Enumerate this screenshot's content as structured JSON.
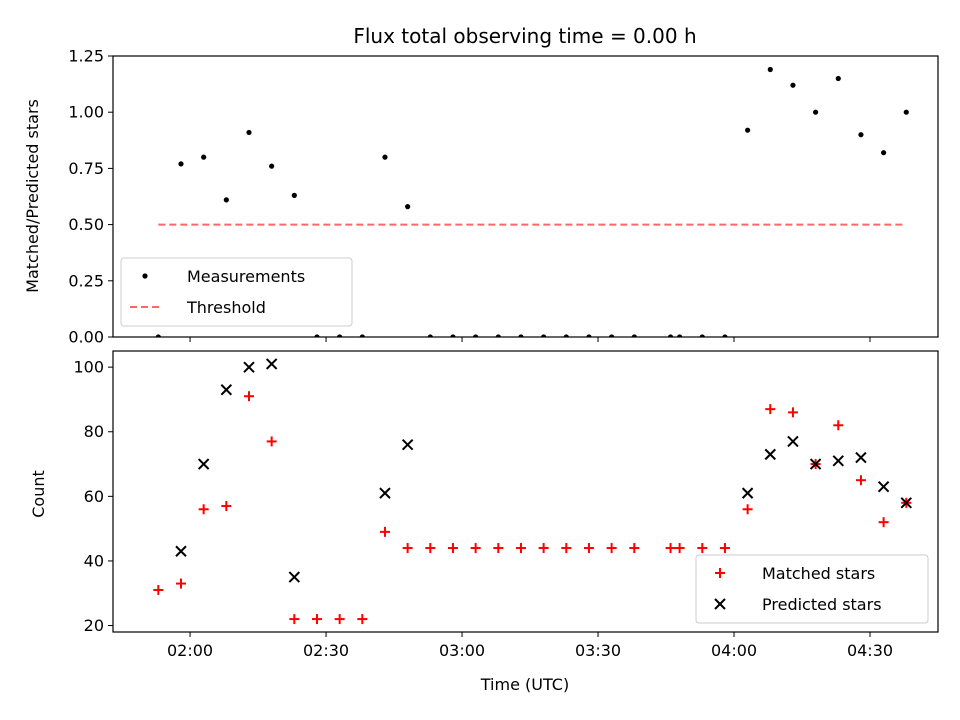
{
  "chart_data": [
    {
      "type": "scatter",
      "title": "Flux total observing time = 0.00 h",
      "xlabel": "",
      "ylabel": "Matched/Predicted stars",
      "ylim": [
        0,
        1.25
      ],
      "yticks": [
        "0.00",
        "0.25",
        "0.50",
        "0.75",
        "1.00",
        "1.25"
      ],
      "legend": {
        "placement": "lower-left"
      },
      "series": [
        {
          "name": "Measurements",
          "marker": "dot",
          "color": "#000000",
          "x": [
            "01:53",
            "01:58",
            "02:03",
            "02:08",
            "02:13",
            "02:18",
            "02:23",
            "02:28",
            "02:33",
            "02:38",
            "02:43",
            "02:48",
            "02:53",
            "02:58",
            "03:03",
            "03:08",
            "03:13",
            "03:18",
            "03:23",
            "03:28",
            "03:33",
            "03:38",
            "03:46",
            "03:48",
            "03:53",
            "03:58",
            "04:03",
            "04:08",
            "04:13",
            "04:18",
            "04:23",
            "04:28",
            "04:33",
            "04:38"
          ],
          "y": [
            0.0,
            0.77,
            0.8,
            0.61,
            0.91,
            0.76,
            0.63,
            0.0,
            0.0,
            0.0,
            0.8,
            0.58,
            0.0,
            0.0,
            0.0,
            0.0,
            0.0,
            0.0,
            0.0,
            0.0,
            0.0,
            0.0,
            0.0,
            0.0,
            0.0,
            0.0,
            0.92,
            1.19,
            1.12,
            1.0,
            1.15,
            0.9,
            0.82,
            1.0
          ]
        },
        {
          "name": "Threshold",
          "style": "dashed",
          "color": "#ff6666",
          "x": [
            "01:53",
            "04:38"
          ],
          "y": [
            0.5,
            0.5
          ]
        }
      ]
    },
    {
      "type": "scatter",
      "title": "",
      "xlabel": "Time (UTC)",
      "ylabel": "Count",
      "ylim": [
        18,
        105
      ],
      "yticks": [
        "20",
        "40",
        "60",
        "80",
        "100"
      ],
      "xticks": [
        "02:00",
        "02:30",
        "03:00",
        "03:30",
        "04:00",
        "04:30"
      ],
      "legend": {
        "placement": "lower-right"
      },
      "series": [
        {
          "name": "Matched stars",
          "marker": "plus",
          "color": "#ff0000",
          "x": [
            "01:53",
            "01:58",
            "02:03",
            "02:08",
            "02:13",
            "02:18",
            "02:23",
            "02:28",
            "02:33",
            "02:38",
            "02:43",
            "02:48",
            "02:53",
            "02:58",
            "03:03",
            "03:08",
            "03:13",
            "03:18",
            "03:23",
            "03:28",
            "03:33",
            "03:38",
            "03:46",
            "03:48",
            "03:53",
            "03:58",
            "04:03",
            "04:08",
            "04:13",
            "04:18",
            "04:23",
            "04:28",
            "04:33",
            "04:38"
          ],
          "y": [
            31,
            33,
            56,
            57,
            91,
            77,
            22,
            22,
            22,
            22,
            49,
            44,
            44,
            44,
            44,
            44,
            44,
            44,
            44,
            44,
            44,
            44,
            44,
            44,
            44,
            44,
            56,
            87,
            86,
            70,
            82,
            65,
            52,
            58
          ]
        },
        {
          "name": "Predicted stars",
          "marker": "x",
          "color": "#000000",
          "x": [
            "01:58",
            "02:03",
            "02:08",
            "02:13",
            "02:18",
            "02:23",
            "02:43",
            "02:48",
            "04:03",
            "04:08",
            "04:13",
            "04:18",
            "04:23",
            "04:28",
            "04:33",
            "04:38"
          ],
          "y": [
            43,
            70,
            93,
            100,
            101,
            35,
            61,
            76,
            61,
            73,
            77,
            70,
            71,
            72,
            63,
            58
          ]
        }
      ]
    }
  ]
}
